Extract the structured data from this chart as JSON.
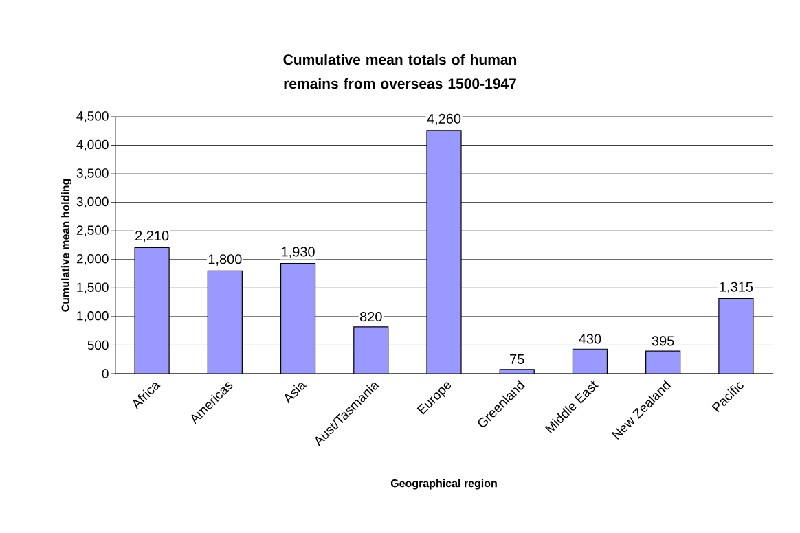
{
  "chart_data": {
    "type": "bar",
    "title": "Cumulative mean totals of human remains from overseas 1500-1947",
    "xlabel": "Geographical region",
    "ylabel": "Cumulative mean holding",
    "categories": [
      "Africa",
      "Americas",
      "Asia",
      "Aust/Tasmania",
      "Europe",
      "Greenland",
      "Middle East",
      "New Zealand",
      "Pacific"
    ],
    "values": [
      2210,
      1800,
      1930,
      820,
      4260,
      75,
      430,
      395,
      1315
    ],
    "color": "#9999ff",
    "ylim": [
      0,
      4500
    ],
    "yticks": [
      0,
      {
        "value": 500,
        "label": "500"
      },
      {
        "value": 1000,
        "label": "1,000"
      },
      {
        "value": 1500,
        "label": "1,500"
      },
      {
        "value": 2000,
        "label": "2,000"
      },
      {
        "value": 2500,
        "label": "2,500"
      },
      {
        "value": 3000,
        "label": "3,000"
      },
      {
        "value": 3500,
        "label": "3,500"
      },
      {
        "value": 4000,
        "label": "4,000"
      },
      {
        "value": 4500,
        "label": "4,500"
      }
    ],
    "value_labels": [
      "2,210",
      "1,800",
      "1,930",
      "820",
      "4,260",
      "75",
      "430",
      "395",
      "1,315"
    ],
    "grid": "y"
  }
}
